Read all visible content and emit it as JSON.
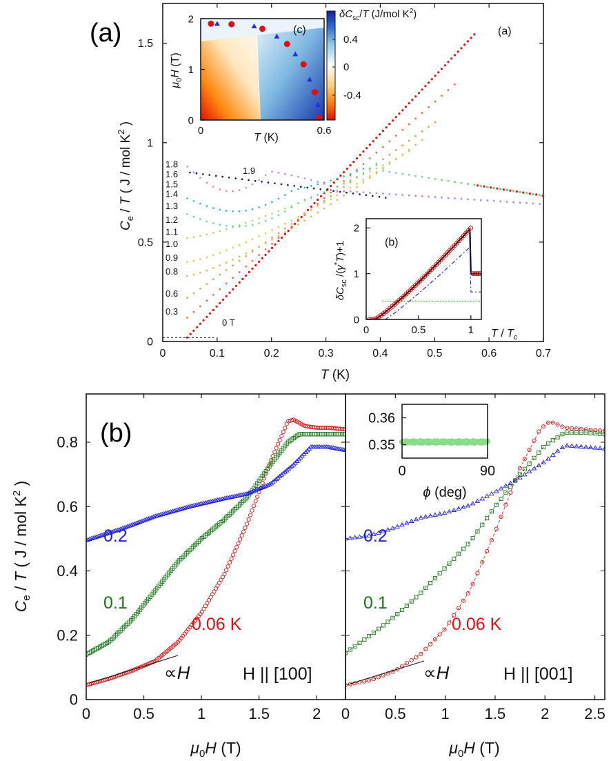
{
  "figure_labels": {
    "panel_a": "(a)",
    "panel_b": "(b)"
  },
  "colors": {
    "red": "#e01010",
    "green": "#1a7a1a",
    "blue": "#2020e0",
    "navy": "#101060",
    "violet": "#c080e0",
    "black": "#000000"
  },
  "chart_data": [
    {
      "id": "main-a",
      "type": "scatter",
      "panel_tag": "(a)",
      "xlabel": "T (K)",
      "ylabel": "Ce / T ( J / mol K2 )",
      "xlim": [
        0,
        0.7
      ],
      "ylim": [
        0,
        1.7
      ],
      "xticks": [
        "0",
        "0.1",
        "0.2",
        "0.3",
        "0.4",
        "0.5",
        "0.6",
        "0.7"
      ],
      "yticks": [
        "0",
        "0.5",
        "1",
        "1.5"
      ],
      "field_labels": [
        "1.8",
        "1.6",
        "1.5",
        "1.4",
        "1.3",
        "1.2",
        "1.1",
        "1.0",
        "0.9",
        "0.8",
        "0.6",
        "0.3"
      ],
      "field_label_y": [
        0.89,
        0.84,
        0.79,
        0.74,
        0.68,
        0.61,
        0.55,
        0.49,
        0.42,
        0.35,
        0.24,
        0.15
      ],
      "annotations": {
        "top_curve": "1.9",
        "zero_field": "0 T"
      },
      "series": [
        {
          "name": "0 T",
          "color": "#e01010",
          "tc": 0.575,
          "jump": 1.55
        },
        {
          "name": "0.3 T",
          "color": "#ff5a28",
          "tc": 0.54,
          "jump": 1.3
        },
        {
          "name": "0.6 T",
          "color": "#ff8c3c",
          "tc": 0.51,
          "jump": 1.12
        },
        {
          "name": "0.8 T",
          "color": "#f4aa44",
          "tc": 0.48,
          "jump": 1.02
        },
        {
          "name": "0.9 T",
          "color": "#e6c050",
          "tc": 0.46,
          "jump": 0.97
        },
        {
          "name": "1.1 T",
          "color": "#a8d860",
          "tc": 0.43,
          "jump": 0.92
        },
        {
          "name": "1.3 T",
          "color": "#60d890",
          "tc": 0.4,
          "jump": 0.9
        },
        {
          "name": "1.5 T",
          "color": "#22b8d0",
          "tc": 0.37,
          "jump": 0.87
        },
        {
          "name": "1.8 T",
          "color": "#c080e0",
          "tc": 0.3,
          "jump": 0.79
        },
        {
          "name": "1.9 T",
          "color": "#101060",
          "tc": 0.0,
          "jump": 0.0
        }
      ]
    },
    {
      "id": "inset-c",
      "type": "heatmap",
      "panel_tag": "(c)",
      "xlabel": "T (K)",
      "ylabel": "μ0H (T)",
      "xlim": [
        0,
        0.6
      ],
      "ylim": [
        0,
        2
      ],
      "xticks": [
        "0",
        "0.6"
      ],
      "yticks": [
        "0",
        "1",
        "2"
      ],
      "colorbar_label": "δCsc / T (J/mol K2)",
      "colorbar_ticks": [
        "0.4",
        "0",
        "-0.4"
      ],
      "boundary_points": [
        {
          "T": 0.05,
          "H": 1.9
        },
        {
          "T": 0.08,
          "H": 1.9
        },
        {
          "T": 0.15,
          "H": 1.89
        },
        {
          "T": 0.26,
          "H": 1.85
        },
        {
          "T": 0.3,
          "H": 1.8
        },
        {
          "T": 0.37,
          "H": 1.65
        },
        {
          "T": 0.42,
          "H": 1.5
        },
        {
          "T": 0.46,
          "H": 1.3
        },
        {
          "T": 0.5,
          "H": 1.1
        },
        {
          "T": 0.53,
          "H": 0.8
        },
        {
          "T": 0.555,
          "H": 0.55
        },
        {
          "T": 0.57,
          "H": 0.3
        },
        {
          "T": 0.575,
          "H": 0.05
        }
      ]
    },
    {
      "id": "inset-b",
      "type": "line",
      "panel_tag": "(b)",
      "xlabel": "T / Tc",
      "ylabel": "δCsc / (γ* T)+1",
      "xlim": [
        0,
        1.1
      ],
      "ylim": [
        0,
        2.2
      ],
      "xticks": [
        "0",
        "0.5",
        "1"
      ],
      "yticks": [
        "0",
        "1",
        "2"
      ],
      "jump_height": 2.0,
      "normal_value": 1.0
    },
    {
      "id": "bottom-left",
      "type": "line",
      "panel_tag": "(b)",
      "xlabel": "μ0H (T)",
      "ylabel": "Ce / T ( J / mol K2 )",
      "xlim": [
        0,
        2.25
      ],
      "ylim": [
        0,
        0.95
      ],
      "xticks": [
        "0",
        "0.5",
        "1",
        "1.5",
        "2"
      ],
      "yticks": [
        "0",
        "0.2",
        "0.4",
        "0.6",
        "0.8"
      ],
      "orientation": "H || [100]",
      "proportional_label": "∝H",
      "series": [
        {
          "name": "0.06 K",
          "label": "0.06 K",
          "color": "#e01010",
          "marker": "circle",
          "x": [
            0,
            0.2,
            0.4,
            0.6,
            0.8,
            1.0,
            1.2,
            1.4,
            1.6,
            1.75,
            1.8,
            1.9,
            2.0,
            2.1,
            2.25
          ],
          "y": [
            0.045,
            0.065,
            0.09,
            0.12,
            0.18,
            0.27,
            0.39,
            0.55,
            0.74,
            0.865,
            0.87,
            0.85,
            0.845,
            0.845,
            0.84
          ]
        },
        {
          "name": "0.1 K",
          "label": "0.1",
          "color": "#1a7a1a",
          "marker": "square",
          "x": [
            0,
            0.2,
            0.4,
            0.6,
            0.8,
            1.0,
            1.2,
            1.4,
            1.6,
            1.75,
            1.85,
            2.0,
            2.25
          ],
          "y": [
            0.14,
            0.18,
            0.25,
            0.34,
            0.43,
            0.5,
            0.56,
            0.63,
            0.73,
            0.8,
            0.825,
            0.825,
            0.825
          ]
        },
        {
          "name": "0.2 K",
          "label": "0.2",
          "color": "#2020e0",
          "marker": "triangle",
          "x": [
            0,
            0.3,
            0.6,
            0.9,
            1.2,
            1.4,
            1.6,
            1.8,
            1.95,
            2.1,
            2.25
          ],
          "y": [
            0.495,
            0.53,
            0.57,
            0.6,
            0.625,
            0.64,
            0.67,
            0.73,
            0.785,
            0.785,
            0.775
          ]
        }
      ]
    },
    {
      "id": "bottom-right",
      "type": "line",
      "xlabel": "μ0H (T)",
      "xlim": [
        0,
        2.6
      ],
      "ylim": [
        0,
        0.95
      ],
      "xticks": [
        "0",
        "0.5",
        "1",
        "1.5",
        "2",
        "2.5"
      ],
      "orientation": "H || [001]",
      "proportional_label": "∝H",
      "series": [
        {
          "name": "0.06 K",
          "label": "0.06 K",
          "color": "#e01010",
          "marker": "circle",
          "x": [
            0,
            0.25,
            0.5,
            0.75,
            1.0,
            1.25,
            1.5,
            1.75,
            1.95,
            2.05,
            2.2,
            2.4,
            2.6
          ],
          "y": [
            0.045,
            0.06,
            0.09,
            0.14,
            0.22,
            0.34,
            0.52,
            0.72,
            0.84,
            0.865,
            0.845,
            0.84,
            0.835
          ]
        },
        {
          "name": "0.1 K",
          "label": "0.1",
          "color": "#1a7a1a",
          "marker": "square",
          "x": [
            0,
            0.25,
            0.5,
            0.75,
            1.0,
            1.25,
            1.5,
            1.75,
            2.0,
            2.2,
            2.4,
            2.6
          ],
          "y": [
            0.145,
            0.2,
            0.26,
            0.33,
            0.41,
            0.49,
            0.6,
            0.7,
            0.79,
            0.83,
            0.83,
            0.825
          ]
        },
        {
          "name": "0.2 K",
          "label": "0.2",
          "color": "#2020e0",
          "marker": "triangle",
          "x": [
            0,
            0.25,
            0.5,
            0.75,
            1.0,
            1.25,
            1.5,
            1.75,
            2.0,
            2.2,
            2.4,
            2.6
          ],
          "y": [
            0.5,
            0.51,
            0.535,
            0.565,
            0.58,
            0.605,
            0.645,
            0.69,
            0.74,
            0.79,
            0.785,
            0.78
          ]
        }
      ],
      "inset": {
        "xlabel": "φ (deg)",
        "xlim": [
          0,
          90
        ],
        "ylim": [
          0.345,
          0.365
        ],
        "xticks": [
          "0",
          "90"
        ],
        "yticks": [
          "0.35",
          "0.36"
        ],
        "value": 0.351,
        "color": "#88dd88"
      }
    }
  ]
}
